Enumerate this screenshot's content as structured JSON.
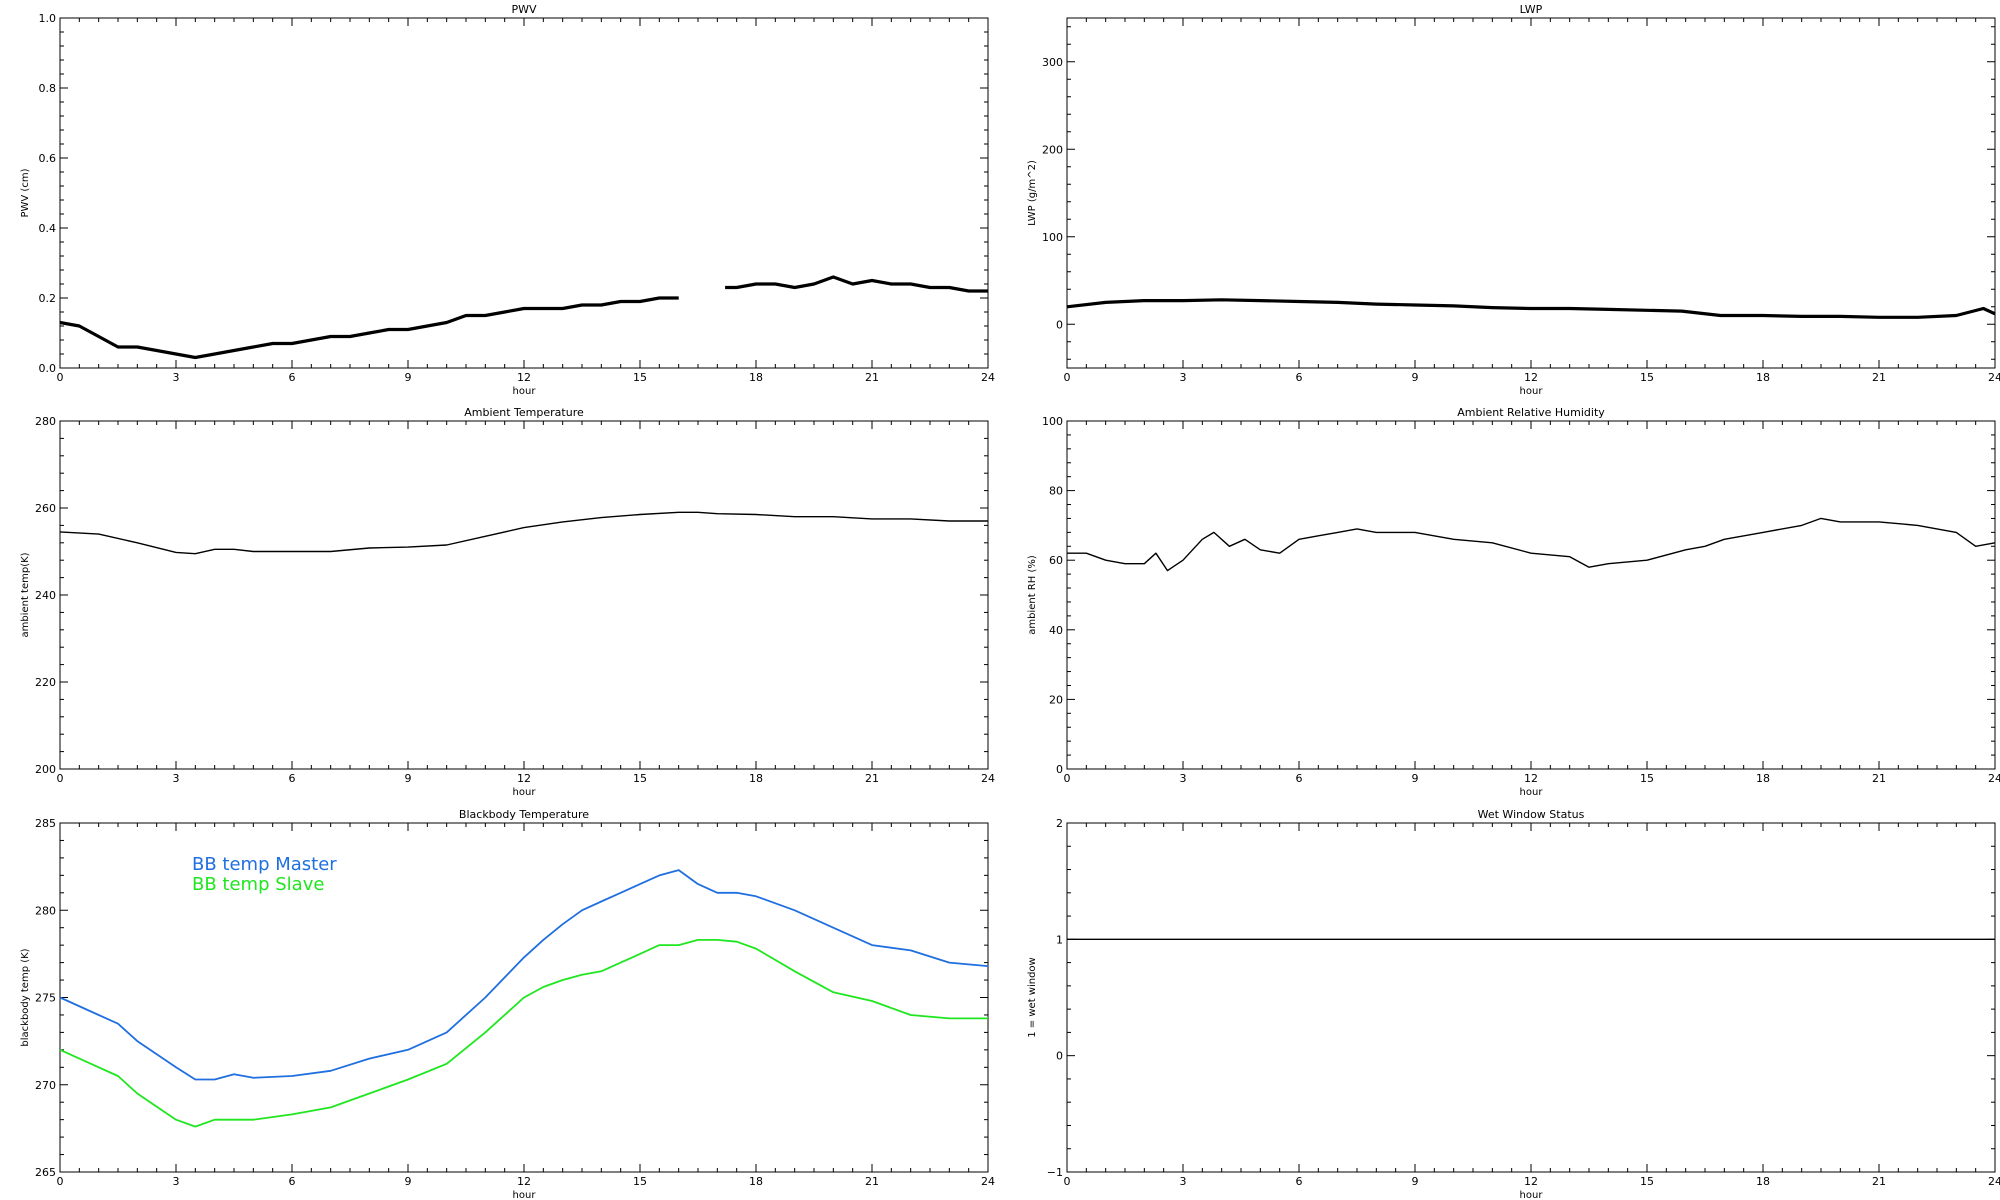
{
  "chart_data": [
    {
      "type": "scatter",
      "title": "PWV",
      "xlabel": "hour",
      "ylabel": "PWV (cm)",
      "xlim": [
        0,
        24
      ],
      "ylim": [
        0,
        1.0
      ],
      "xticks": [
        0,
        3,
        6,
        9,
        12,
        15,
        18,
        21,
        24
      ],
      "xtick_labels": [
        "0",
        "3",
        "6",
        "9",
        "12",
        "15",
        "18",
        "21",
        "24"
      ],
      "yticks": [
        0,
        0.2,
        0.4,
        0.6,
        0.8,
        1.0
      ],
      "ytick_labels": [
        "0.0",
        "0.2",
        "0.4",
        "0.6",
        "0.8",
        "1.0"
      ],
      "grid": false,
      "series": [
        {
          "color": "#000000",
          "x": [
            0,
            0.5,
            1,
            1.5,
            2,
            2.5,
            3,
            3.5,
            4,
            4.5,
            5,
            5.5,
            6,
            6.5,
            7,
            7.5,
            8,
            8.5,
            9,
            9.5,
            10,
            10.5,
            11,
            11.5,
            12,
            12.5,
            13,
            13.5,
            14,
            14.5,
            15,
            15.5,
            16,
            16.5,
            16.8,
            17.2,
            17.5,
            18,
            18.5,
            19,
            19.5,
            20,
            20.5,
            21,
            21.5,
            22,
            22.5,
            23,
            23.5,
            24
          ],
          "y": [
            0.13,
            0.12,
            0.09,
            0.06,
            0.06,
            0.05,
            0.04,
            0.03,
            0.04,
            0.05,
            0.06,
            0.07,
            0.07,
            0.08,
            0.09,
            0.09,
            0.1,
            0.11,
            0.11,
            0.12,
            0.13,
            0.15,
            0.15,
            0.16,
            0.17,
            0.17,
            0.17,
            0.18,
            0.18,
            0.19,
            0.19,
            0.2,
            0.2,
            null,
            null,
            0.23,
            0.23,
            0.24,
            0.24,
            0.23,
            0.24,
            0.26,
            0.24,
            0.25,
            0.24,
            0.24,
            0.23,
            0.23,
            0.22,
            0.22
          ]
        }
      ]
    },
    {
      "type": "scatter",
      "title": "LWP",
      "xlabel": "hour",
      "ylabel": "LWP (g/m^2)",
      "xlim": [
        0,
        24
      ],
      "ylim": [
        -50,
        350
      ],
      "xticks": [
        0,
        3,
        6,
        9,
        12,
        15,
        18,
        21,
        24
      ],
      "xtick_labels": [
        "0",
        "3",
        "6",
        "9",
        "12",
        "15",
        "18",
        "21",
        "24"
      ],
      "yticks": [
        0,
        100,
        200,
        300
      ],
      "ytick_labels": [
        "0",
        "100",
        "200",
        "300"
      ],
      "grid": false,
      "series": [
        {
          "color": "#000000",
          "x": [
            0,
            1,
            2,
            3,
            4,
            5,
            6,
            7,
            8,
            9,
            10,
            11,
            12,
            13,
            14,
            15,
            15.9,
            16.9,
            17.5,
            18,
            19,
            20,
            21,
            22,
            23,
            23.7,
            24
          ],
          "y": [
            20,
            25,
            27,
            27,
            28,
            27,
            26,
            25,
            23,
            22,
            21,
            19,
            18,
            18,
            17,
            16,
            15,
            10,
            10,
            10,
            9,
            9,
            8,
            8,
            10,
            18,
            12
          ]
        }
      ]
    },
    {
      "type": "line",
      "title": "Ambient Temperature",
      "xlabel": "hour",
      "ylabel": "ambient temp(K)",
      "xlim": [
        0,
        24
      ],
      "ylim": [
        200,
        280
      ],
      "xticks": [
        0,
        3,
        6,
        9,
        12,
        15,
        18,
        21,
        24
      ],
      "xtick_labels": [
        "0",
        "3",
        "6",
        "9",
        "12",
        "15",
        "18",
        "21",
        "24"
      ],
      "yticks": [
        200,
        220,
        240,
        260,
        280
      ],
      "ytick_labels": [
        "200",
        "220",
        "240",
        "260",
        "280"
      ],
      "grid": false,
      "series": [
        {
          "color": "#000000",
          "x": [
            0,
            1,
            2,
            3,
            3.5,
            4,
            4.5,
            5,
            6,
            7,
            8,
            9,
            10,
            11,
            12,
            13,
            14,
            15,
            16,
            16.5,
            17,
            18,
            19,
            20,
            21,
            22,
            23,
            24
          ],
          "y": [
            254.5,
            254,
            252,
            249.8,
            249.5,
            250.5,
            250.5,
            250,
            250,
            250,
            250.8,
            251,
            251.5,
            253.5,
            255.5,
            256.8,
            257.8,
            258.5,
            259,
            259,
            258.7,
            258.5,
            258,
            258,
            257.5,
            257.5,
            257,
            257
          ]
        }
      ]
    },
    {
      "type": "line",
      "title": "Ambient Relative Humidity",
      "xlabel": "hour",
      "ylabel": "ambient RH (%)",
      "xlim": [
        0,
        24
      ],
      "ylim": [
        0,
        100
      ],
      "xticks": [
        0,
        3,
        6,
        9,
        12,
        15,
        18,
        21,
        24
      ],
      "xtick_labels": [
        "0",
        "3",
        "6",
        "9",
        "12",
        "15",
        "18",
        "21",
        "24"
      ],
      "yticks": [
        0,
        20,
        40,
        60,
        80,
        100
      ],
      "ytick_labels": [
        "0",
        "20",
        "40",
        "60",
        "80",
        "100"
      ],
      "grid": false,
      "series": [
        {
          "color": "#000000",
          "x": [
            0,
            0.5,
            1,
            1.5,
            2,
            2.3,
            2.6,
            3,
            3.5,
            3.8,
            4.2,
            4.6,
            5,
            5.5,
            6,
            6.5,
            7,
            7.5,
            8,
            9,
            10,
            11,
            12,
            13,
            13.5,
            14,
            15,
            16,
            16.5,
            17,
            18,
            19,
            19.5,
            20,
            21,
            22,
            23,
            23.5,
            24
          ],
          "y": [
            62,
            62,
            60,
            59,
            59,
            62,
            57,
            60,
            66,
            68,
            64,
            66,
            63,
            62,
            66,
            67,
            68,
            69,
            68,
            68,
            66,
            65,
            62,
            61,
            58,
            59,
            60,
            63,
            64,
            66,
            68,
            70,
            72,
            71,
            71,
            70,
            68,
            64,
            65
          ]
        }
      ]
    },
    {
      "type": "line",
      "title": "Blackbody Temperature",
      "xlabel": "hour",
      "ylabel": "blackbody temp (K)",
      "xlim": [
        0,
        24
      ],
      "ylim": [
        265,
        285
      ],
      "xticks": [
        0,
        3,
        6,
        9,
        12,
        15,
        18,
        21,
        24
      ],
      "xtick_labels": [
        "0",
        "3",
        "6",
        "9",
        "12",
        "15",
        "18",
        "21",
        "24"
      ],
      "yticks": [
        265,
        270,
        275,
        280,
        285
      ],
      "ytick_labels": [
        "265",
        "270",
        "275",
        "280",
        "285"
      ],
      "grid": false,
      "legend": "top-left",
      "series": [
        {
          "name": "BB temp Master",
          "color": "#1f6fe0",
          "x": [
            0,
            1,
            1.5,
            2,
            3,
            3.5,
            4,
            4.5,
            5,
            6,
            7,
            8,
            9,
            10,
            11,
            12,
            12.5,
            13,
            13.5,
            14,
            14.5,
            15,
            15.5,
            16,
            16.5,
            17,
            17.5,
            18,
            19,
            20,
            21,
            22,
            23,
            24
          ],
          "y": [
            275,
            274,
            273.5,
            272.5,
            271,
            270.3,
            270.3,
            270.6,
            270.4,
            270.5,
            270.8,
            271.5,
            272,
            273,
            275,
            277.3,
            278.3,
            279.2,
            280,
            280.5,
            281,
            281.5,
            282,
            282.3,
            281.5,
            281,
            281,
            280.8,
            280,
            279,
            278,
            277.7,
            277,
            276.8
          ]
        },
        {
          "name": "BB temp Slave",
          "color": "#1fe61f",
          "x": [
            0,
            1,
            1.5,
            2,
            3,
            3.5,
            4,
            4.5,
            5,
            6,
            7,
            8,
            9,
            10,
            11,
            12,
            12.5,
            13,
            13.5,
            14,
            14.5,
            15,
            15.5,
            16,
            16.5,
            17,
            17.5,
            18,
            19,
            20,
            21,
            22,
            23,
            24
          ],
          "y": [
            272,
            271,
            270.5,
            269.5,
            268,
            267.6,
            268,
            268,
            268,
            268.3,
            268.7,
            269.5,
            270.3,
            271.2,
            273,
            275,
            275.6,
            276,
            276.3,
            276.5,
            277,
            277.5,
            278,
            278,
            278.3,
            278.3,
            278.2,
            277.8,
            276.5,
            275.3,
            274.8,
            274,
            273.8,
            273.8
          ]
        }
      ]
    },
    {
      "type": "line",
      "title": "Wet Window Status",
      "xlabel": "hour",
      "ylabel": "1 = wet window",
      "xlim": [
        0,
        24
      ],
      "ylim": [
        -1,
        2
      ],
      "xticks": [
        0,
        3,
        6,
        9,
        12,
        15,
        18,
        21,
        24
      ],
      "xtick_labels": [
        "0",
        "3",
        "6",
        "9",
        "12",
        "15",
        "18",
        "21",
        "24"
      ],
      "yticks": [
        -1,
        0,
        1,
        2
      ],
      "ytick_labels": [
        "−1",
        "0",
        "1",
        "2"
      ],
      "grid": false,
      "series": [
        {
          "color": "#000000",
          "x": [
            0,
            24
          ],
          "y": [
            1,
            1
          ]
        }
      ]
    }
  ]
}
